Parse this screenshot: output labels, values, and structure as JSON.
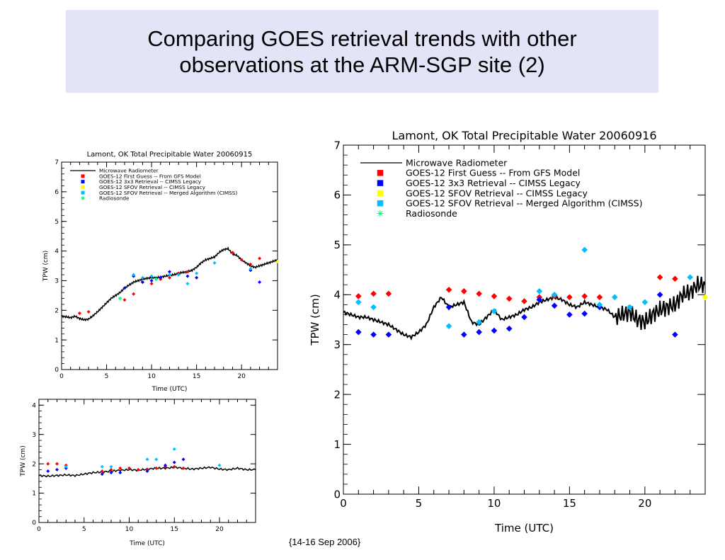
{
  "slide": {
    "title_line1": "Comparing GOES retrieval trends with other",
    "title_line2": "observations at the ARM-SGP site (2)",
    "footer": "{14-16 Sep 2006}"
  },
  "colors": {
    "title_bg": "#e4e4f8",
    "first_guess": "#ff0000",
    "legacy_3x3": "#0000ff",
    "sfov_legacy": "#ffff00",
    "sfov_merged": "#00bfff",
    "radiosonde": "#00ff80",
    "microwave": "#000000"
  },
  "chart_data": [
    {
      "id": "c1",
      "type": "scatter",
      "title": "Lamont, OK   Total Precipitable Water 20060915",
      "xlabel": "Time (UTC)",
      "ylabel": "TPW (cm)",
      "xlim": [
        0,
        24
      ],
      "ylim": [
        0,
        7
      ],
      "xticks": [
        0,
        5,
        10,
        15,
        20
      ],
      "yticks": [
        0,
        1,
        2,
        3,
        4,
        5,
        6,
        7
      ],
      "legend": [
        {
          "label": "Microwave Radiometer",
          "kind": "line",
          "color": "#000000"
        },
        {
          "label": "GOES-12 First Guess -- From GFS Model",
          "kind": "square",
          "color": "#ff0000"
        },
        {
          "label": "GOES-12 3x3 Retrieval -- CIMSS Legacy",
          "kind": "square",
          "color": "#0000ff"
        },
        {
          "label": "GOES-12 SFOV Retrieval -- CIMSS Legacy",
          "kind": "square",
          "color": "#ffff00"
        },
        {
          "label": "GOES-12 SFOV Retrieval -- Merged Algorithm (CIMSS)",
          "kind": "square",
          "color": "#00bfff"
        },
        {
          "label": "Radiosonde",
          "kind": "star",
          "color": "#00ff80"
        }
      ],
      "line": {
        "x": [
          0,
          0.5,
          1,
          1.5,
          2,
          2.5,
          3,
          3.5,
          4,
          4.5,
          5,
          5.5,
          6,
          6.5,
          7,
          7.5,
          8,
          8.5,
          9,
          9.5,
          10,
          10.5,
          11,
          11.5,
          12,
          12.5,
          13,
          13.5,
          14,
          14.5,
          15,
          15.5,
          16,
          16.5,
          17,
          17.5,
          18,
          18.5,
          19,
          19.5,
          20,
          20.5,
          21,
          21.5,
          22,
          22.5,
          23,
          23.5,
          24
        ],
        "y": [
          1.8,
          1.78,
          1.75,
          1.8,
          1.72,
          1.68,
          1.7,
          1.82,
          1.95,
          2.1,
          2.25,
          2.4,
          2.5,
          2.6,
          2.75,
          2.85,
          2.95,
          3.0,
          3.05,
          3.08,
          3.1,
          3.1,
          3.12,
          3.15,
          3.18,
          3.2,
          3.25,
          3.28,
          3.3,
          3.35,
          3.45,
          3.6,
          3.7,
          3.75,
          3.8,
          3.95,
          4.05,
          4.08,
          3.9,
          3.85,
          3.7,
          3.6,
          3.5,
          3.45,
          3.5,
          3.55,
          3.6,
          3.65,
          3.7
        ]
      },
      "series": [
        {
          "name": "GOES-12 First Guess -- From GFS Model",
          "color": "#ff0000",
          "marker": "diamond",
          "x": [
            2,
            3,
            7,
            8,
            9,
            10,
            11,
            12,
            13,
            14,
            19,
            20,
            21,
            22
          ],
          "y": [
            1.9,
            1.95,
            2.35,
            2.55,
            2.95,
            2.9,
            3.05,
            3.1,
            3.25,
            3.3,
            3.95,
            3.7,
            3.55,
            3.75
          ]
        },
        {
          "name": "GOES-12 3x3 Retrieval -- CIMSS Legacy",
          "color": "#0000ff",
          "marker": "diamond",
          "x": [
            7,
            8,
            9,
            10,
            11,
            12,
            13,
            14,
            15,
            21,
            22
          ],
          "y": [
            2.75,
            3.15,
            2.95,
            3.0,
            3.1,
            3.3,
            3.2,
            3.15,
            3.1,
            3.35,
            2.95
          ]
        },
        {
          "name": "GOES-12 SFOV Retrieval -- CIMSS Legacy",
          "color": "#ffff00",
          "marker": "diamond",
          "x": [
            24
          ],
          "y": [
            3.65
          ]
        },
        {
          "name": "GOES-12 SFOV Retrieval -- Merged Algorithm (CIMSS)",
          "color": "#00bfff",
          "marker": "diamond",
          "x": [
            8,
            9,
            10,
            12,
            13,
            14,
            15,
            17,
            21
          ],
          "y": [
            3.2,
            3.1,
            3.15,
            3.2,
            3.2,
            2.9,
            3.25,
            3.6,
            3.4
          ]
        },
        {
          "name": "Radiosonde",
          "color": "#00ff80",
          "marker": "star",
          "x": [
            6.5,
            10.5
          ],
          "y": [
            2.4,
            3.05
          ]
        }
      ]
    },
    {
      "id": "c2",
      "type": "scatter",
      "title": "",
      "xlabel": "Time (UTC)",
      "ylabel": "TPW (cm)",
      "xlim": [
        0,
        24
      ],
      "ylim": [
        0,
        4.2
      ],
      "xticks": [
        0,
        5,
        10,
        15,
        20
      ],
      "yticks": [
        0,
        1,
        2,
        3,
        4
      ],
      "legend": [],
      "line": {
        "x": [
          0,
          1,
          2,
          3,
          4,
          5,
          6,
          7,
          8,
          9,
          10,
          11,
          12,
          13,
          14,
          15,
          16,
          17,
          18,
          19,
          20,
          21,
          22,
          23,
          24
        ],
        "y": [
          1.6,
          1.58,
          1.6,
          1.62,
          1.6,
          1.65,
          1.7,
          1.72,
          1.75,
          1.78,
          1.8,
          1.78,
          1.82,
          1.85,
          1.85,
          1.88,
          1.85,
          1.82,
          1.85,
          1.88,
          1.82,
          1.8,
          1.85,
          1.8,
          1.8
        ]
      },
      "series": [
        {
          "name": "GOES-12 First Guess -- From GFS Model",
          "color": "#ff0000",
          "marker": "diamond",
          "x": [
            1,
            2,
            3,
            7,
            8,
            9,
            10,
            11,
            12,
            13,
            14,
            15,
            16
          ],
          "y": [
            2.0,
            2.0,
            1.95,
            1.75,
            1.8,
            1.85,
            1.85,
            1.8,
            1.8,
            1.85,
            1.9,
            1.9,
            1.85
          ]
        },
        {
          "name": "GOES-12 3x3 Retrieval -- CIMSS Legacy",
          "color": "#0000ff",
          "marker": "diamond",
          "x": [
            1,
            2,
            3,
            7,
            8,
            9,
            12,
            14,
            15,
            16
          ],
          "y": [
            1.75,
            1.8,
            1.85,
            1.65,
            1.7,
            1.7,
            1.75,
            1.95,
            2.05,
            2.15
          ]
        },
        {
          "name": "GOES-12 SFOV Retrieval -- Merged Algorithm (CIMSS)",
          "color": "#00bfff",
          "marker": "diamond",
          "x": [
            3,
            7,
            8,
            12,
            13,
            15,
            20
          ],
          "y": [
            1.9,
            1.9,
            1.9,
            2.15,
            2.15,
            2.5,
            1.95
          ]
        }
      ]
    },
    {
      "id": "c3",
      "type": "scatter",
      "title": "Lamont, OK   Total Precipitable Water 20060916",
      "xlabel": "Time (UTC)",
      "ylabel": "TPW (cm)",
      "xlim": [
        0,
        24
      ],
      "ylim": [
        0,
        7
      ],
      "xticks": [
        0,
        5,
        10,
        15,
        20
      ],
      "yticks": [
        0,
        1,
        2,
        3,
        4,
        5,
        6,
        7
      ],
      "legend": [
        {
          "label": "Microwave Radiometer",
          "kind": "line",
          "color": "#000000"
        },
        {
          "label": "GOES-12 First Guess -- From GFS Model",
          "kind": "square",
          "color": "#ff0000"
        },
        {
          "label": "GOES-12 3x3 Retrieval -- CIMSS Legacy",
          "kind": "square",
          "color": "#0000ff"
        },
        {
          "label": "GOES-12 SFOV Retrieval -- CIMSS Legacy",
          "kind": "square",
          "color": "#ffff00"
        },
        {
          "label": "GOES-12 SFOV Retrieval -- Merged Algorithm (CIMSS)",
          "kind": "square",
          "color": "#00bfff"
        },
        {
          "label": "Radiosonde",
          "kind": "star",
          "color": "#00ff80"
        }
      ],
      "line": {
        "x": [
          0,
          0.5,
          1,
          1.5,
          2,
          2.5,
          3,
          3.5,
          4,
          4.5,
          5,
          5.5,
          6,
          6.5,
          7,
          7.5,
          8,
          8.5,
          9,
          9.5,
          10,
          10.5,
          11,
          11.5,
          12,
          12.5,
          13,
          13.5,
          14,
          14.5,
          15,
          15.5,
          16,
          16.5,
          17,
          17.5,
          18,
          18.5,
          19,
          19.5,
          20,
          20.5,
          21,
          21.5,
          22,
          22.5,
          23,
          23.5,
          24
        ],
        "y": [
          3.65,
          3.6,
          3.55,
          3.55,
          3.5,
          3.45,
          3.4,
          3.3,
          3.2,
          3.15,
          3.25,
          3.4,
          3.75,
          3.95,
          3.75,
          3.8,
          3.85,
          3.45,
          3.4,
          3.55,
          3.7,
          3.5,
          3.55,
          3.6,
          3.7,
          3.75,
          3.85,
          3.9,
          3.95,
          3.9,
          3.8,
          3.75,
          3.85,
          3.8,
          3.75,
          3.7,
          3.55,
          3.6,
          3.65,
          3.5,
          3.45,
          3.6,
          3.7,
          3.75,
          3.8,
          4.0,
          4.05,
          4.2,
          4.2
        ]
      },
      "series": [
        {
          "name": "GOES-12 First Guess -- From GFS Model",
          "color": "#ff0000",
          "marker": "diamond",
          "x": [
            1,
            2,
            3,
            7,
            8,
            9,
            10,
            11,
            12,
            13,
            14,
            15,
            16,
            17,
            21,
            22
          ],
          "y": [
            3.97,
            4.02,
            4.02,
            4.1,
            4.07,
            4.02,
            3.97,
            3.92,
            3.87,
            3.95,
            3.97,
            3.95,
            3.97,
            3.95,
            4.35,
            4.32
          ]
        },
        {
          "name": "GOES-12 3x3 Retrieval -- CIMSS Legacy",
          "color": "#0000ff",
          "marker": "diamond",
          "x": [
            1,
            2,
            3,
            7,
            8,
            9,
            10,
            11,
            12,
            13,
            14,
            15,
            16,
            17,
            21,
            22
          ],
          "y": [
            3.25,
            3.2,
            3.2,
            3.75,
            3.2,
            3.25,
            3.28,
            3.32,
            3.55,
            3.9,
            3.78,
            3.6,
            3.62,
            3.75,
            4.0,
            3.2
          ]
        },
        {
          "name": "GOES-12 SFOV Retrieval -- CIMSS Legacy",
          "color": "#ffff00",
          "marker": "diamond",
          "x": [
            24
          ],
          "y": [
            3.95
          ]
        },
        {
          "name": "GOES-12 SFOV Retrieval -- Merged Algorithm (CIMSS)",
          "color": "#00bfff",
          "marker": "diamond",
          "x": [
            1,
            2,
            7,
            9,
            10,
            13,
            14,
            16,
            17,
            18,
            19,
            20,
            23
          ],
          "y": [
            3.85,
            3.75,
            3.37,
            3.45,
            3.67,
            4.07,
            4.0,
            4.9,
            3.8,
            3.95,
            3.75,
            3.85,
            4.35
          ]
        }
      ]
    }
  ]
}
